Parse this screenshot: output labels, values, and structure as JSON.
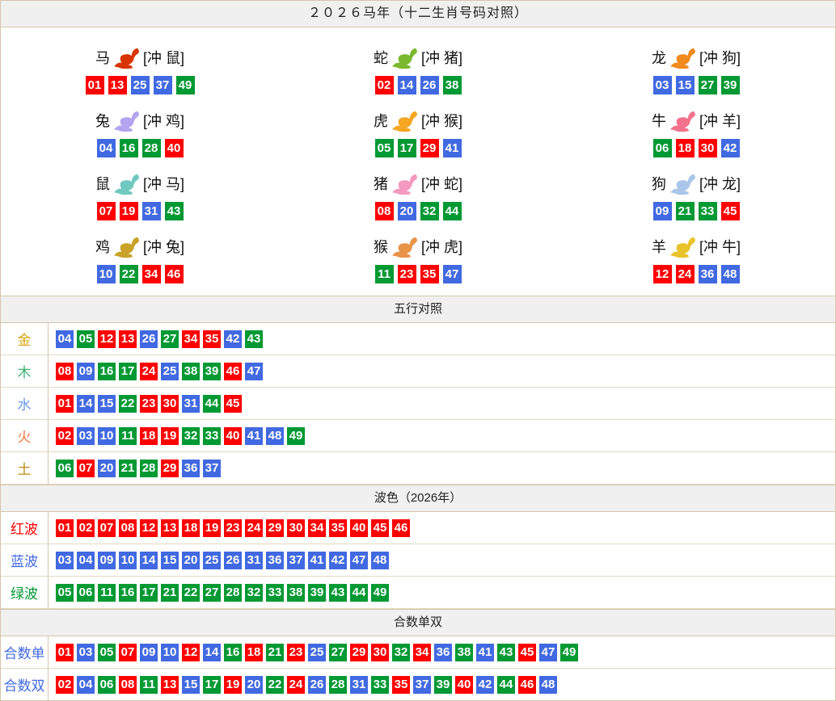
{
  "page": {
    "title": "２０２６马年（十二生肖号码对照）"
  },
  "ball_palette": {
    "red": "#fe0000",
    "blue": "#4169e1",
    "green": "#009933"
  },
  "ball_colors_map": {
    "01": "red",
    "02": "red",
    "03": "blue",
    "04": "blue",
    "05": "green",
    "06": "green",
    "07": "red",
    "08": "red",
    "09": "blue",
    "10": "blue",
    "11": "green",
    "12": "red",
    "13": "red",
    "14": "blue",
    "15": "blue",
    "16": "green",
    "17": "green",
    "18": "red",
    "19": "red",
    "20": "blue",
    "21": "green",
    "22": "green",
    "23": "red",
    "24": "red",
    "25": "blue",
    "26": "blue",
    "27": "green",
    "28": "green",
    "29": "red",
    "30": "red",
    "31": "blue",
    "32": "green",
    "33": "green",
    "34": "red",
    "35": "red",
    "36": "blue",
    "37": "blue",
    "38": "green",
    "39": "green",
    "40": "red",
    "41": "blue",
    "42": "blue",
    "43": "green",
    "44": "green",
    "45": "red",
    "46": "red",
    "47": "blue",
    "48": "blue",
    "49": "green"
  },
  "zodiac_section": {
    "cells": [
      {
        "key": "horse",
        "name": "马",
        "icon": "horse-icon",
        "icon_color": "#d83405",
        "clash_label": "[冲 鼠]",
        "numbers": [
          "01",
          "13",
          "25",
          "37",
          "49"
        ]
      },
      {
        "key": "snake",
        "name": "蛇",
        "icon": "snake-icon",
        "icon_color": "#7ab82e",
        "clash_label": "[冲 猪]",
        "numbers": [
          "02",
          "14",
          "26",
          "38"
        ]
      },
      {
        "key": "dragon",
        "name": "龙",
        "icon": "dragon-icon",
        "icon_color": "#f08a1d",
        "clash_label": "[冲 狗]",
        "numbers": [
          "03",
          "15",
          "27",
          "39"
        ]
      },
      {
        "key": "rabbit",
        "name": "兔",
        "icon": "rabbit-icon",
        "icon_color": "#b3a4ef",
        "clash_label": "[冲 鸡]",
        "numbers": [
          "04",
          "16",
          "28",
          "40"
        ]
      },
      {
        "key": "tiger",
        "name": "虎",
        "icon": "tiger-icon",
        "icon_color": "#f5a623",
        "clash_label": "[冲 猴]",
        "numbers": [
          "05",
          "17",
          "29",
          "41"
        ]
      },
      {
        "key": "ox",
        "name": "牛",
        "icon": "ox-icon",
        "icon_color": "#f2728c",
        "clash_label": "[冲 羊]",
        "numbers": [
          "06",
          "18",
          "30",
          "42"
        ]
      },
      {
        "key": "rat",
        "name": "鼠",
        "icon": "rat-icon",
        "icon_color": "#6fc9c0",
        "clash_label": "[冲 马]",
        "numbers": [
          "07",
          "19",
          "31",
          "43"
        ]
      },
      {
        "key": "pig",
        "name": "猪",
        "icon": "pig-icon",
        "icon_color": "#f49ac1",
        "clash_label": "[冲 蛇]",
        "numbers": [
          "08",
          "20",
          "32",
          "44"
        ]
      },
      {
        "key": "dog",
        "name": "狗",
        "icon": "dog-icon",
        "icon_color": "#a9c6ea",
        "clash_label": "[冲 龙]",
        "numbers": [
          "09",
          "21",
          "33",
          "45"
        ]
      },
      {
        "key": "rooster",
        "name": "鸡",
        "icon": "rooster-icon",
        "icon_color": "#c9a227",
        "clash_label": "[冲 兔]",
        "numbers": [
          "10",
          "22",
          "34",
          "46"
        ]
      },
      {
        "key": "monkey",
        "name": "猴",
        "icon": "monkey-icon",
        "icon_color": "#e8924a",
        "clash_label": "[冲 虎]",
        "numbers": [
          "11",
          "23",
          "35",
          "47"
        ]
      },
      {
        "key": "goat",
        "name": "羊",
        "icon": "goat-icon",
        "icon_color": "#e8c32a",
        "clash_label": "[冲 牛]",
        "numbers": [
          "12",
          "24",
          "36",
          "48"
        ]
      }
    ]
  },
  "sections": [
    {
      "key": "five-elements",
      "header": "五行对照",
      "rows": [
        {
          "key": "gold",
          "label": "金",
          "label_color": "#d9a40e",
          "numbers": [
            "04",
            "05",
            "12",
            "13",
            "26",
            "27",
            "34",
            "35",
            "42",
            "43"
          ]
        },
        {
          "key": "wood",
          "label": "木",
          "label_color": "#3cb371",
          "numbers": [
            "08",
            "09",
            "16",
            "17",
            "24",
            "25",
            "38",
            "39",
            "46",
            "47"
          ]
        },
        {
          "key": "water",
          "label": "水",
          "label_color": "#6a9aec",
          "numbers": [
            "01",
            "14",
            "15",
            "22",
            "23",
            "30",
            "31",
            "44",
            "45"
          ]
        },
        {
          "key": "fire",
          "label": "火",
          "label_color": "#ee7744",
          "numbers": [
            "02",
            "03",
            "10",
            "11",
            "18",
            "19",
            "32",
            "33",
            "40",
            "41",
            "48",
            "49"
          ]
        },
        {
          "key": "earth",
          "label": "土",
          "label_color": "#bd8d12",
          "numbers": [
            "06",
            "07",
            "20",
            "21",
            "28",
            "29",
            "36",
            "37"
          ]
        }
      ]
    },
    {
      "key": "wave-colors",
      "header": "波色（2026年）",
      "rows": [
        {
          "key": "red-wave",
          "label": "红波",
          "label_color": "#fe0000",
          "numbers": [
            "01",
            "02",
            "07",
            "08",
            "12",
            "13",
            "18",
            "19",
            "23",
            "24",
            "29",
            "30",
            "34",
            "35",
            "40",
            "45",
            "46"
          ]
        },
        {
          "key": "blue-wave",
          "label": "蓝波",
          "label_color": "#4169e1",
          "numbers": [
            "03",
            "04",
            "09",
            "10",
            "14",
            "15",
            "20",
            "25",
            "26",
            "31",
            "36",
            "37",
            "41",
            "42",
            "47",
            "48"
          ]
        },
        {
          "key": "green-wave",
          "label": "绿波",
          "label_color": "#009933",
          "numbers": [
            "05",
            "06",
            "11",
            "16",
            "17",
            "21",
            "22",
            "27",
            "28",
            "32",
            "33",
            "38",
            "39",
            "43",
            "44",
            "49"
          ]
        }
      ]
    },
    {
      "key": "sum-odd-even",
      "header": "合数单双",
      "rows": [
        {
          "key": "sum-odd",
          "label": "合数单",
          "label_color": "#4169e1",
          "numbers": [
            "01",
            "03",
            "05",
            "07",
            "09",
            "10",
            "12",
            "14",
            "16",
            "18",
            "21",
            "23",
            "25",
            "27",
            "29",
            "30",
            "32",
            "34",
            "36",
            "38",
            "41",
            "43",
            "45",
            "47",
            "49"
          ]
        },
        {
          "key": "sum-even",
          "label": "合数双",
          "label_color": "#4169e1",
          "numbers": [
            "02",
            "04",
            "06",
            "08",
            "11",
            "13",
            "15",
            "17",
            "19",
            "20",
            "22",
            "24",
            "26",
            "28",
            "31",
            "33",
            "35",
            "37",
            "39",
            "40",
            "42",
            "44",
            "46",
            "48"
          ]
        }
      ]
    }
  ]
}
